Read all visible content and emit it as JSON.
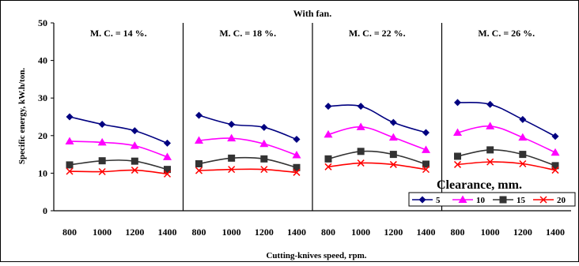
{
  "chart_data": {
    "type": "line",
    "title": "With fan.",
    "xlabel": "Cutting-knives speed, rpm.",
    "ylabel": "Specific energy, kW.h/ton.",
    "ylim": [
      0,
      50
    ],
    "yticks": [
      0,
      10,
      20,
      30,
      40,
      50
    ],
    "grid": false,
    "legend": {
      "title": "Clearance, mm.",
      "placement": "bottom-right"
    },
    "series_styles": [
      {
        "name": "5",
        "color": "#000080",
        "marker": "diamond"
      },
      {
        "name": "10",
        "color": "#ff00ff",
        "marker": "triangle"
      },
      {
        "name": "15",
        "color": "#333333",
        "marker": "square"
      },
      {
        "name": "20",
        "color": "#ff0000",
        "marker": "x"
      }
    ],
    "panels": [
      {
        "label": "M. C. = 14 %.",
        "categories": [
          "800",
          "1000",
          "1200",
          "1400"
        ],
        "series": [
          {
            "name": "5",
            "values": [
              25.0,
              23.0,
              21.3,
              18.0
            ]
          },
          {
            "name": "10",
            "values": [
              18.5,
              18.2,
              17.3,
              14.3
            ]
          },
          {
            "name": "15",
            "values": [
              12.2,
              13.3,
              13.2,
              11.0
            ]
          },
          {
            "name": "20",
            "values": [
              10.5,
              10.4,
              10.8,
              9.8
            ]
          }
        ]
      },
      {
        "label": "M. C. = 18 %.",
        "categories": [
          "800",
          "1000",
          "1200",
          "1400"
        ],
        "series": [
          {
            "name": "5",
            "values": [
              25.4,
              23.0,
              22.2,
              19.0
            ]
          },
          {
            "name": "10",
            "values": [
              18.7,
              19.3,
              17.8,
              14.8
            ]
          },
          {
            "name": "15",
            "values": [
              12.5,
              14.0,
              13.8,
              11.5
            ]
          },
          {
            "name": "20",
            "values": [
              10.7,
              11.0,
              11.0,
              10.2
            ]
          }
        ]
      },
      {
        "label": "M. C. = 22 %.",
        "categories": [
          "800",
          "1000",
          "1200",
          "1400"
        ],
        "series": [
          {
            "name": "5",
            "values": [
              27.8,
              27.8,
              23.5,
              20.8
            ]
          },
          {
            "name": "10",
            "values": [
              20.3,
              22.3,
              19.5,
              16.2
            ]
          },
          {
            "name": "15",
            "values": [
              13.8,
              15.8,
              15.0,
              12.4
            ]
          },
          {
            "name": "20",
            "values": [
              11.7,
              12.7,
              12.3,
              11.0
            ]
          }
        ]
      },
      {
        "label": "M. C. = 26 %.",
        "categories": [
          "800",
          "1000",
          "1200",
          "1400"
        ],
        "series": [
          {
            "name": "5",
            "values": [
              28.8,
              28.3,
              24.3,
              19.8
            ]
          },
          {
            "name": "10",
            "values": [
              20.8,
              22.5,
              19.5,
              15.5
            ]
          },
          {
            "name": "15",
            "values": [
              14.5,
              16.2,
              15.0,
              12.0
            ]
          },
          {
            "name": "20",
            "values": [
              12.3,
              13.0,
              12.5,
              10.8
            ]
          }
        ]
      }
    ]
  }
}
